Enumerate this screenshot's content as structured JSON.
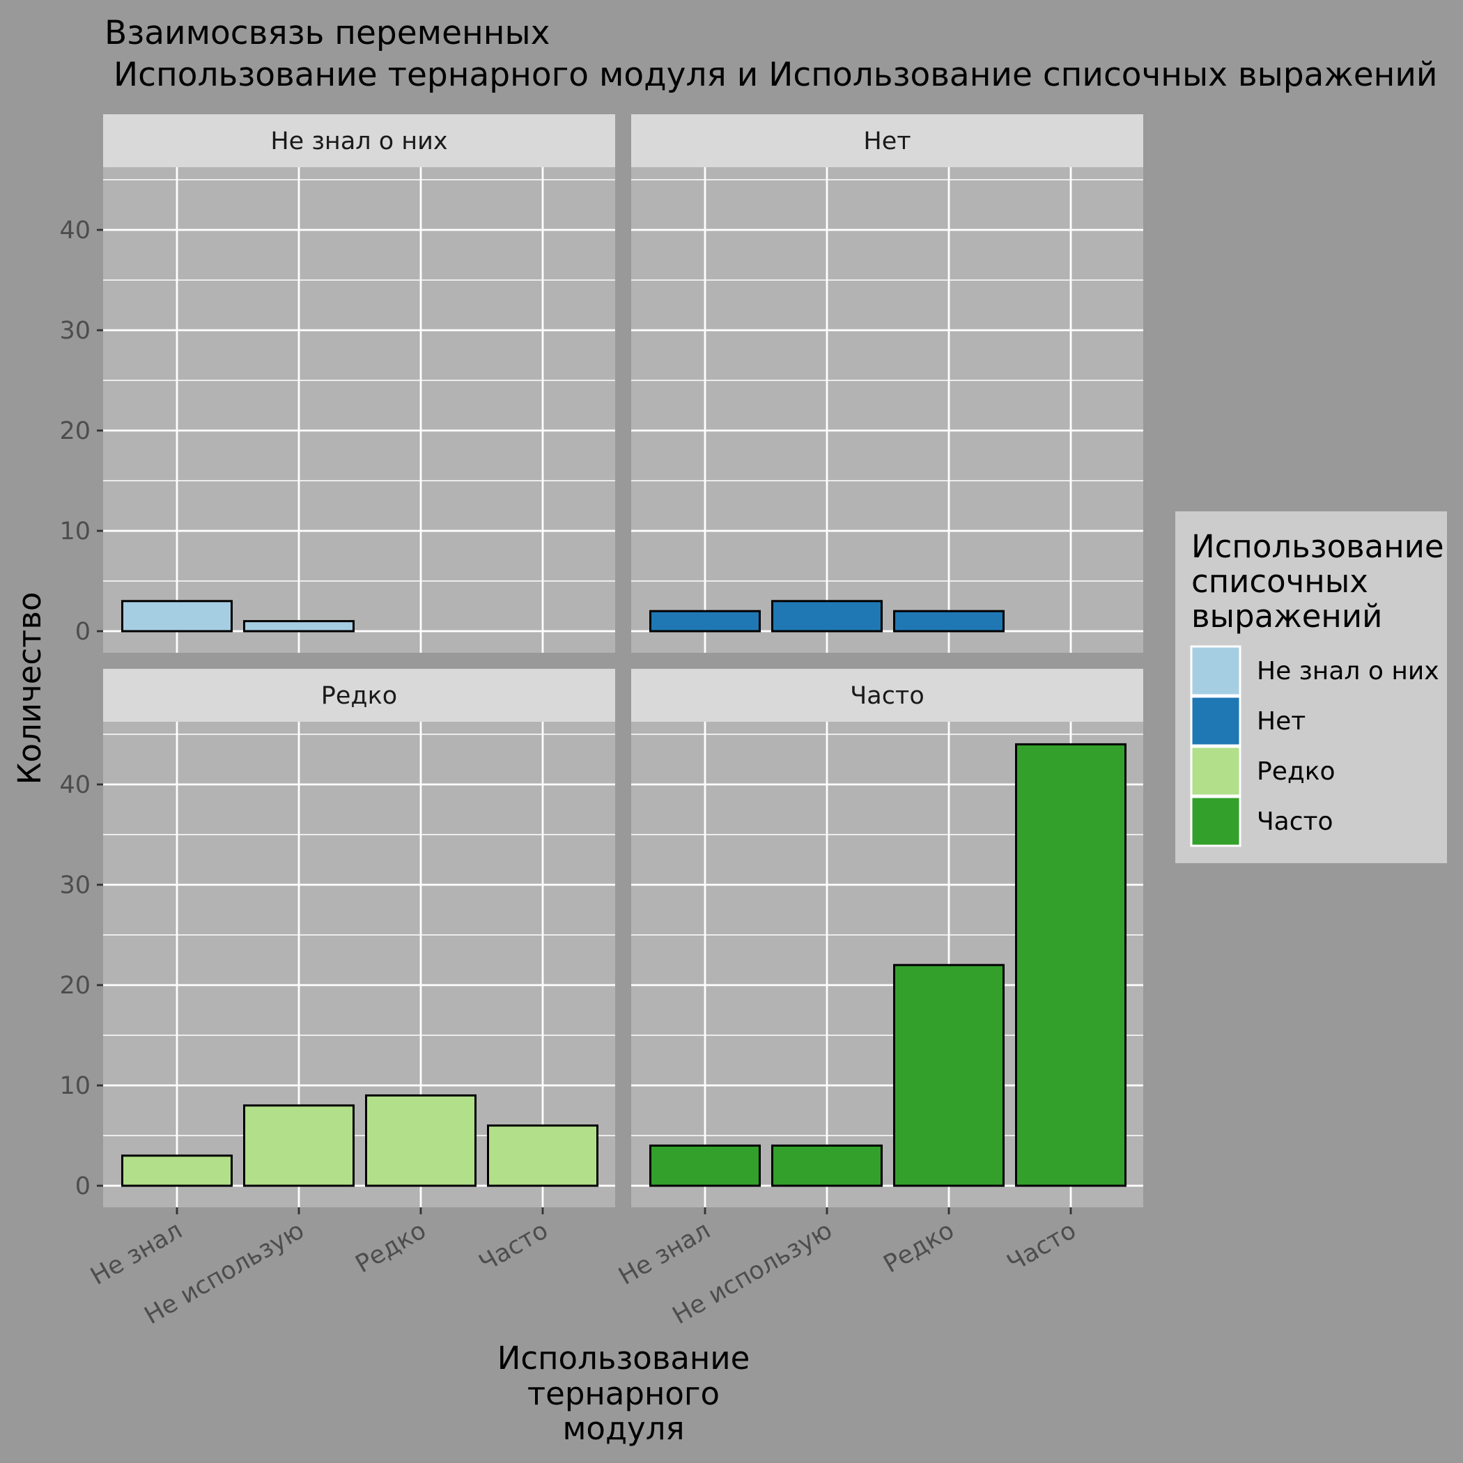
{
  "chart_data": {
    "type": "bar",
    "title_line1": "Взаимосвязь переменных",
    "title_line2": "Использование тернарного модуля и Использование списочных выражений",
    "xlabel": [
      "Использование",
      "тернарного",
      "модуля"
    ],
    "ylabel": "Количество",
    "categories": [
      "Не знал",
      "Не использую",
      "Редко",
      "Часто"
    ],
    "ylim": [
      0,
      46
    ],
    "y_ticks": [
      0,
      10,
      20,
      30,
      40
    ],
    "grid": true,
    "legend": {
      "title": [
        "Использование",
        "списочных",
        "выражений"
      ],
      "placement": "right",
      "items": [
        {
          "label": "Не знал о них",
          "color": "#A6CEE3"
        },
        {
          "label": "Нет",
          "color": "#1F78B4"
        },
        {
          "label": "Редко",
          "color": "#B2DF8A"
        },
        {
          "label": "Часто",
          "color": "#33A02C"
        }
      ]
    },
    "facets": [
      {
        "name": "Не знал о них",
        "color": "#A6CEE3",
        "values": [
          3,
          1,
          0,
          0
        ]
      },
      {
        "name": "Нет",
        "color": "#1F78B4",
        "values": [
          2,
          3,
          2,
          0
        ]
      },
      {
        "name": "Редко",
        "color": "#B2DF8A",
        "values": [
          3,
          8,
          9,
          6
        ]
      },
      {
        "name": "Часто",
        "color": "#33A02C",
        "values": [
          4,
          4,
          22,
          44
        ]
      }
    ]
  }
}
